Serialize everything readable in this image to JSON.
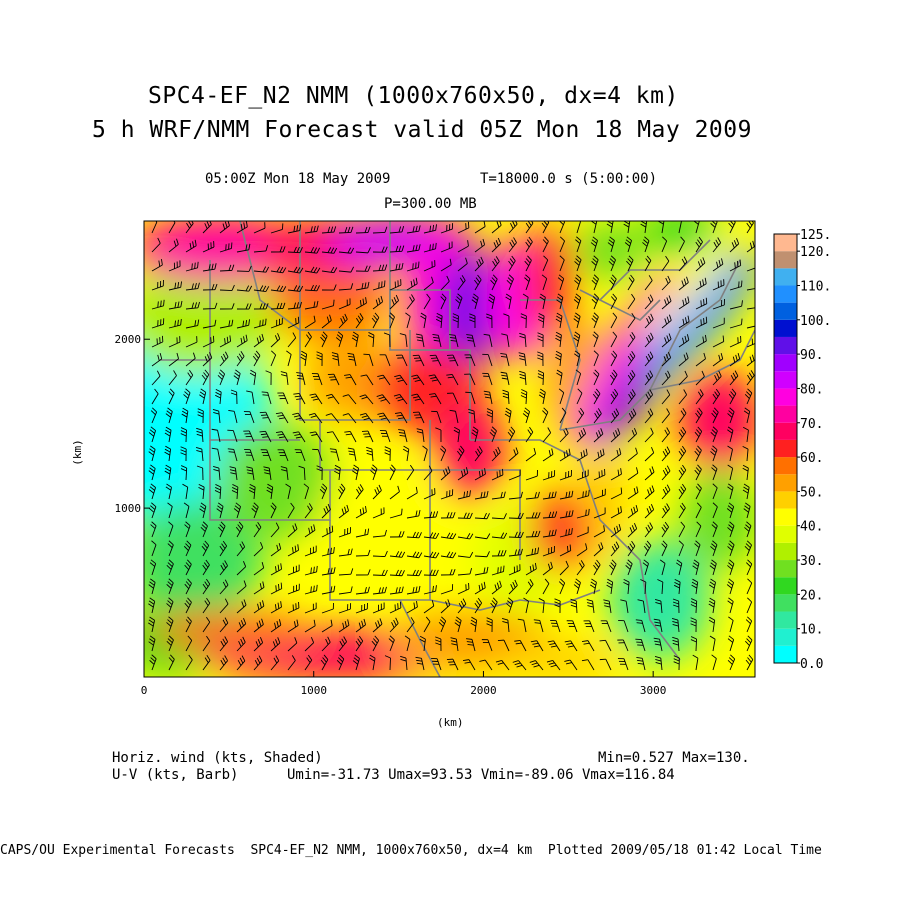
{
  "title": {
    "line1": "SPC4-EF_N2 NMM (1000x760x50, dx=4 km)",
    "line2": "5 h WRF/NMM Forecast valid 05Z Mon 18 May 2009"
  },
  "subtitle": {
    "time": "05:00Z Mon 18 May 2009",
    "seconds": "T=18000.0 s (5:00:00)",
    "level": "P=300.00 MB"
  },
  "axes": {
    "x_label": "(km)",
    "y_label": "(km)",
    "x_ticks": [
      {
        "value": 0,
        "label": "0"
      },
      {
        "value": 1000,
        "label": "1000"
      },
      {
        "value": 2000,
        "label": "2000"
      },
      {
        "value": 3000,
        "label": "3000"
      }
    ],
    "y_ticks": [
      {
        "value": 1000,
        "label": "1000"
      },
      {
        "value": 2000,
        "label": "2000"
      }
    ],
    "x_range_km": [
      0,
      3600
    ],
    "y_range_km": [
      0,
      2700
    ]
  },
  "colorbar": {
    "levels": [
      0,
      5,
      10,
      15,
      20,
      25,
      30,
      35,
      40,
      45,
      50,
      55,
      60,
      65,
      70,
      75,
      80,
      85,
      90,
      95,
      100,
      105,
      110,
      115,
      120,
      125
    ],
    "colors": [
      "#00ffff",
      "#20f0d0",
      "#30e8a0",
      "#40e060",
      "#30d820",
      "#70e020",
      "#b0f000",
      "#e0ff00",
      "#ffff00",
      "#ffd000",
      "#ffa000",
      "#ff7000",
      "#ff2020",
      "#ff0060",
      "#ff00a0",
      "#ff00e0",
      "#d000ff",
      "#a000ff",
      "#6010e8",
      "#0010d0",
      "#0060e0",
      "#2090ff",
      "#40b0f0",
      "#c09070",
      "#ffb890",
      "#ffffb0"
    ],
    "labels": [
      {
        "value": 125,
        "text": "125."
      },
      {
        "value": 120,
        "text": "120."
      },
      {
        "value": 110,
        "text": "110."
      },
      {
        "value": 100,
        "text": "100."
      },
      {
        "value": 90,
        "text": "90."
      },
      {
        "value": 80,
        "text": "80."
      },
      {
        "value": 70,
        "text": "70."
      },
      {
        "value": 60,
        "text": "60."
      },
      {
        "value": 50,
        "text": "50."
      },
      {
        "value": 40,
        "text": "40."
      },
      {
        "value": 30,
        "text": "30."
      },
      {
        "value": 20,
        "text": "20."
      },
      {
        "value": 10,
        "text": "10."
      },
      {
        "value": 0,
        "text": "0.0"
      }
    ]
  },
  "field": {
    "field_label": "Horiz. wind (kts, Shaded)",
    "minmax": "Min=0.527 Max=130.",
    "barb_label": "U-V (kts, Barb)",
    "uv_stats": "Umin=-31.73 Umax=93.53 Vmin=-89.06 Vmax=116.84"
  },
  "footer": "CAPS/OU Experimental Forecasts  SPC4-EF_N2 NMM, 1000x760x50, dx=4 km  Plotted 2009/05/18 01:42 Local Time",
  "colors": {
    "background": "#ffffff",
    "boundary": "#808080",
    "barb": "#000000"
  }
}
